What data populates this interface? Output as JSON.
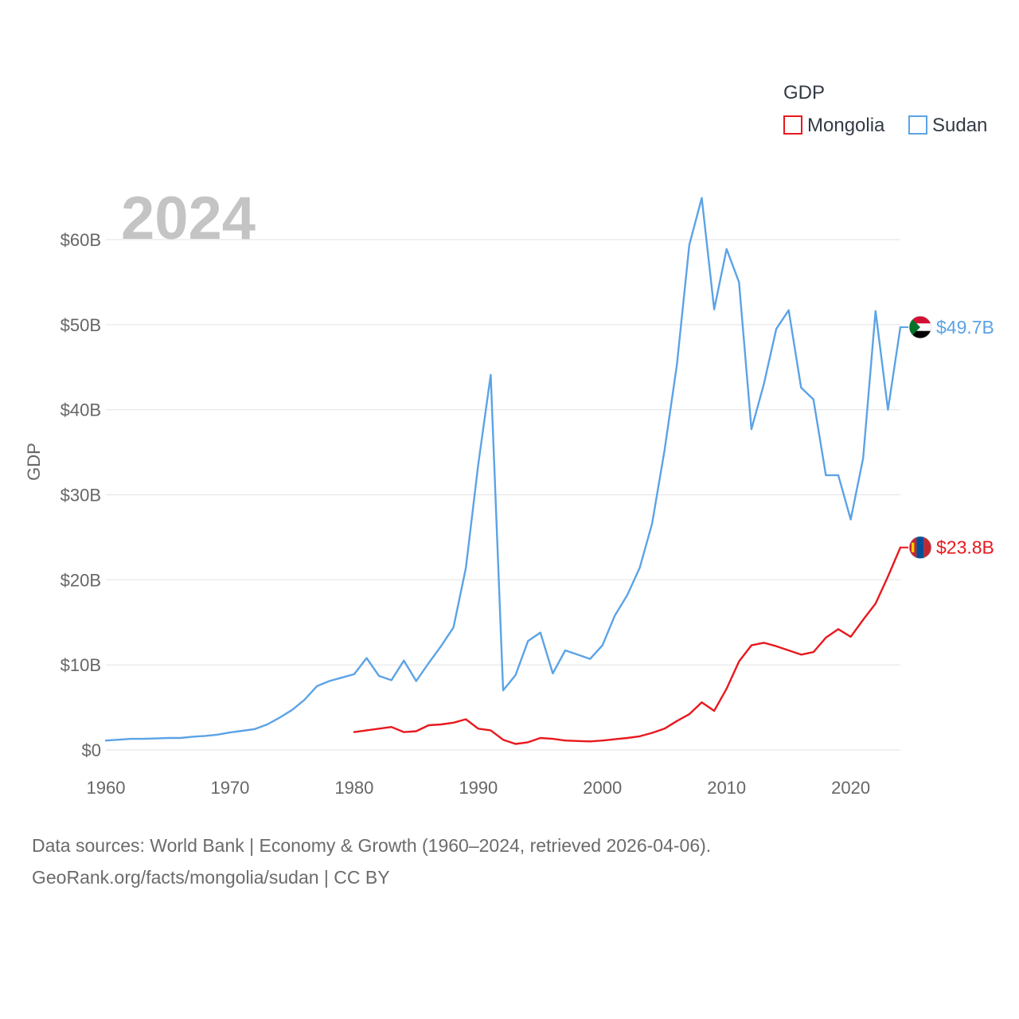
{
  "chart_data": {
    "type": "line",
    "title": "",
    "year_label": "2024",
    "ylabel": "GDP",
    "xlabel": "",
    "xlim": [
      1960,
      2024
    ],
    "ylim": [
      0,
      60
    ],
    "y_unit": "billions USD",
    "xticks": [
      1960,
      1970,
      1980,
      1990,
      2000,
      2010,
      2020
    ],
    "xtick_labels": [
      "1960",
      "1970",
      "1980",
      "1990",
      "2000",
      "2010",
      "2020"
    ],
    "yticks": [
      0,
      10,
      20,
      30,
      40,
      50,
      60
    ],
    "ytick_labels": [
      "$0",
      "$10B",
      "$20B",
      "$30B",
      "$40B",
      "$50B",
      "$60B"
    ],
    "grid": true,
    "legend": {
      "title": "GDP",
      "position": "top-right",
      "entries": [
        "Mongolia",
        "Sudan"
      ]
    },
    "series": [
      {
        "name": "Mongolia",
        "color": "#e8181d",
        "end_label": "$23.8B",
        "x": [
          1980,
          1981,
          1982,
          1983,
          1984,
          1985,
          1986,
          1987,
          1988,
          1989,
          1990,
          1991,
          1992,
          1993,
          1994,
          1995,
          1996,
          1997,
          1998,
          1999,
          2000,
          2001,
          2002,
          2003,
          2004,
          2005,
          2006,
          2007,
          2008,
          2009,
          2010,
          2011,
          2012,
          2013,
          2014,
          2015,
          2016,
          2017,
          2018,
          2019,
          2020,
          2021,
          2022,
          2023,
          2024
        ],
        "values": [
          2.1,
          2.3,
          2.5,
          2.7,
          2.1,
          2.2,
          2.9,
          3.0,
          3.2,
          3.6,
          2.5,
          2.3,
          1.2,
          0.7,
          0.9,
          1.4,
          1.3,
          1.1,
          1.05,
          1.0,
          1.1,
          1.25,
          1.4,
          1.6,
          2.0,
          2.5,
          3.4,
          4.2,
          5.6,
          4.6,
          7.2,
          10.4,
          12.3,
          12.6,
          12.2,
          11.7,
          11.2,
          11.5,
          13.2,
          14.2,
          13.3,
          15.3,
          17.2,
          20.4,
          23.8
        ]
      },
      {
        "name": "Sudan",
        "color": "#5ba3e6",
        "end_label": "$49.7B",
        "x": [
          1960,
          1961,
          1962,
          1963,
          1964,
          1965,
          1966,
          1967,
          1968,
          1969,
          1970,
          1971,
          1972,
          1973,
          1974,
          1975,
          1976,
          1977,
          1978,
          1979,
          1980,
          1981,
          1982,
          1983,
          1984,
          1985,
          1986,
          1987,
          1988,
          1989,
          1990,
          1991,
          1992,
          1993,
          1994,
          1995,
          1996,
          1997,
          1998,
          1999,
          2000,
          2001,
          2002,
          2003,
          2004,
          2005,
          2006,
          2007,
          2008,
          2009,
          2010,
          2011,
          2012,
          2013,
          2014,
          2015,
          2016,
          2017,
          2018,
          2019,
          2020,
          2021,
          2022,
          2023,
          2024
        ],
        "values": [
          1.1,
          1.2,
          1.3,
          1.3,
          1.35,
          1.4,
          1.4,
          1.55,
          1.65,
          1.8,
          2.05,
          2.25,
          2.45,
          3.0,
          3.8,
          4.7,
          5.9,
          7.5,
          8.1,
          8.5,
          8.9,
          10.8,
          8.7,
          8.2,
          10.5,
          8.1,
          10.2,
          12.2,
          14.4,
          21.4,
          33.6,
          44.1,
          7.0,
          8.8,
          12.8,
          13.8,
          9.0,
          11.7,
          11.2,
          10.7,
          12.3,
          15.8,
          18.2,
          21.4,
          26.6,
          35.2,
          45.3,
          59.4,
          64.9,
          51.8,
          58.9,
          55.0,
          37.7,
          43.0,
          49.5,
          51.7,
          42.6,
          41.2,
          32.3,
          32.3,
          27.1,
          34.3,
          51.6,
          40.0,
          49.7
        ]
      }
    ]
  },
  "footer": {
    "line1": "Data sources: World Bank | Economy & Growth (1960–2024, retrieved 2026-04-06).",
    "line2": "GeoRank.org/facts/mongolia/sudan | CC BY"
  }
}
